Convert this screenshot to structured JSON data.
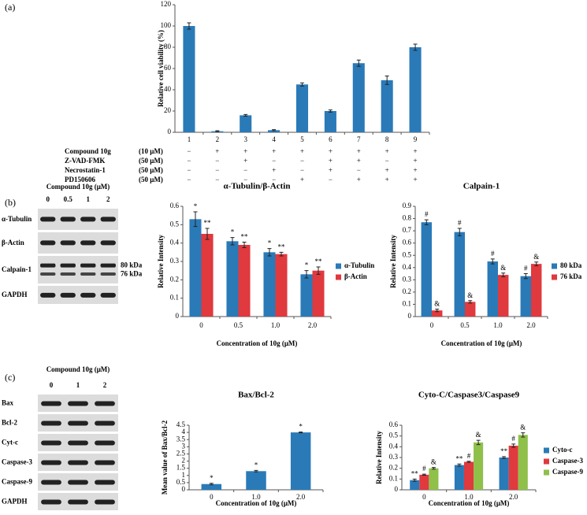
{
  "panel_labels": [
    "(a)",
    "(b)",
    "(c)"
  ],
  "treatment_table": [
    {
      "label": "Compound 10g",
      "conc": "(10 μM)",
      "signs": [
        "−",
        "+",
        "+",
        "+",
        "+",
        "+",
        "+",
        "+",
        "+"
      ]
    },
    {
      "label": "Z-VAD-FMK",
      "conc": "(50 μM)",
      "signs": [
        "−",
        "−",
        "+",
        "−",
        "−",
        "+",
        "+",
        "−",
        "+"
      ]
    },
    {
      "label": "Necrostatin-1",
      "conc": "(50 μM)",
      "signs": [
        "−",
        "−",
        "−",
        "+",
        "−",
        "+",
        "−",
        "+",
        "+"
      ]
    },
    {
      "label": "PD150606",
      "conc": "(50 μM)",
      "signs": [
        "−",
        "−",
        "−",
        "−",
        "+",
        "−",
        "+",
        "+",
        "+"
      ]
    }
  ],
  "blots": [
    {
      "title": "Compound 10g (μM)",
      "lanes": [
        "0",
        "0.5",
        "1",
        "2"
      ],
      "rows": [
        "α-Tubulin",
        "β-Actin",
        "Calpain-1",
        "GAPDH"
      ],
      "band_labels": [
        "80 kDa",
        "76 kDa"
      ]
    },
    {
      "title": "Compound 10g (μM)",
      "lanes": [
        "0",
        "1",
        "2"
      ],
      "rows": [
        "Bax",
        "Bcl-2",
        "Cyt-c",
        "Caspase-3",
        "Caspase-9",
        "GAPDH"
      ]
    }
  ],
  "chart_data": [
    {
      "type": "bar",
      "ylabel": "Relative cell viability (%)",
      "categories": [
        "1",
        "2",
        "3",
        "4",
        "5",
        "6",
        "7",
        "8",
        "9"
      ],
      "values": [
        100,
        1,
        16,
        2,
        45,
        20,
        65,
        49,
        80
      ],
      "errors": [
        3,
        0.5,
        0.8,
        0.5,
        1.5,
        1,
        3,
        4,
        3
      ],
      "color": "#2a7ab8",
      "ylim": [
        0,
        120
      ],
      "yticks": [
        0,
        20,
        40,
        60,
        80,
        100,
        120
      ]
    },
    {
      "type": "bar",
      "title": "α-Tubulin/β-Actin",
      "xlabel": "Concentration of 10g (μM)",
      "ylabel": "Relative Intensity",
      "categories": [
        "0",
        "0.5",
        "1.0",
        "2.0"
      ],
      "series": [
        {
          "name": "α-Tubulin",
          "color": "#2a7ab8",
          "values": [
            0.53,
            0.41,
            0.35,
            0.23
          ],
          "errors": [
            0.04,
            0.02,
            0.02,
            0.02
          ],
          "markers": [
            "*",
            "*",
            "*",
            "*"
          ]
        },
        {
          "name": "β-Actin",
          "color": "#e0393e",
          "values": [
            0.45,
            0.39,
            0.34,
            0.25
          ],
          "errors": [
            0.03,
            0.015,
            0.01,
            0.02
          ],
          "markers": [
            "**",
            "**",
            "**",
            "**"
          ]
        }
      ],
      "ylim": [
        0,
        0.6
      ],
      "yticks": [
        0,
        0.1,
        0.2,
        0.3,
        0.4,
        0.5,
        0.6
      ]
    },
    {
      "type": "bar",
      "title": "Calpain-1",
      "xlabel": "Concentration of 10g (μM)",
      "ylabel": "Relative Intensity",
      "categories": [
        "0",
        "0.5",
        "1.0",
        "2.0"
      ],
      "series": [
        {
          "name": "80 kDa",
          "color": "#2a7ab8",
          "values": [
            0.77,
            0.69,
            0.45,
            0.33
          ],
          "errors": [
            0.02,
            0.03,
            0.02,
            0.02
          ],
          "markers": [
            "#",
            "#",
            "#",
            "#"
          ]
        },
        {
          "name": "76 kDa",
          "color": "#e0393e",
          "values": [
            0.05,
            0.12,
            0.34,
            0.43
          ],
          "errors": [
            0.01,
            0.01,
            0.015,
            0.015
          ],
          "markers": [
            "&",
            "&",
            "&",
            "&"
          ]
        }
      ],
      "ylim": [
        0,
        0.9
      ],
      "yticks": [
        0,
        0.1,
        0.2,
        0.3,
        0.4,
        0.5,
        0.6,
        0.7,
        0.8,
        0.9
      ]
    },
    {
      "type": "bar",
      "title": "Bax/Bcl-2",
      "xlabel": "Concentration of 10g (μM)",
      "ylabel": "Mean value of Bax/Bcl-2",
      "categories": [
        "0",
        "1.0",
        "2.0"
      ],
      "values": [
        0.4,
        1.3,
        4.0
      ],
      "errors": [
        0.05,
        0.05,
        0.03
      ],
      "markers": [
        "*",
        "*",
        "*"
      ],
      "color": "#2a7ab8",
      "ylim": [
        0,
        4.5
      ],
      "yticks": [
        0,
        0.5,
        1,
        1.5,
        2,
        2.5,
        3,
        3.5,
        4,
        4.5
      ]
    },
    {
      "type": "bar",
      "title": "Cyto-C/Caspase3/Caspase9",
      "xlabel": "Concentration of 10g (μM)",
      "ylabel": "Relative Intensity",
      "categories": [
        "0",
        "1.0",
        "2.0"
      ],
      "series": [
        {
          "name": "Cyto-c",
          "color": "#2a7ab8",
          "values": [
            0.09,
            0.23,
            0.3
          ],
          "errors": [
            0.01,
            0.01,
            0.008
          ],
          "markers": [
            "**",
            "**",
            "**"
          ]
        },
        {
          "name": "Caspase-3",
          "color": "#e0393e",
          "values": [
            0.14,
            0.26,
            0.41
          ],
          "errors": [
            0.005,
            0.005,
            0.015
          ],
          "markers": [
            "#",
            "#",
            "#"
          ]
        },
        {
          "name": "Caspase-9",
          "color": "#8fc04a",
          "values": [
            0.2,
            0.44,
            0.51
          ],
          "errors": [
            0.008,
            0.02,
            0.02
          ],
          "markers": [
            "&",
            "&",
            "&"
          ]
        }
      ],
      "ylim": [
        0,
        0.6
      ],
      "yticks": [
        0,
        0.1,
        0.2,
        0.3,
        0.4,
        0.5,
        0.6
      ]
    }
  ]
}
